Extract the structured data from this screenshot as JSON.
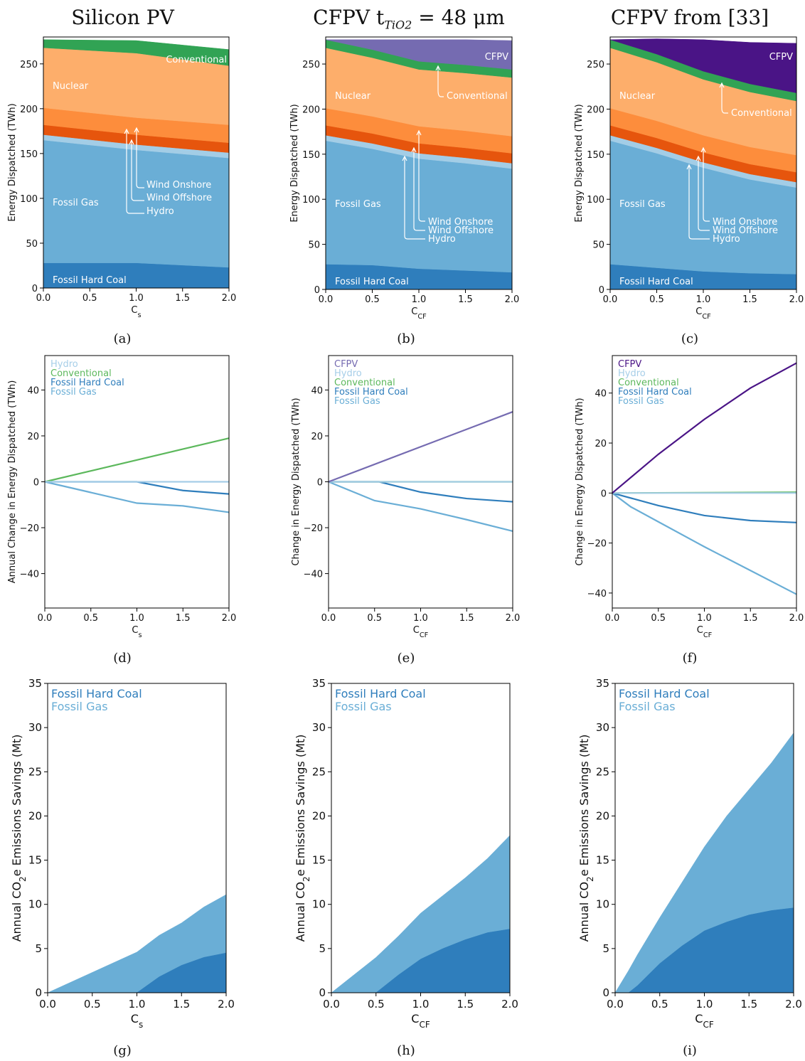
{
  "titles": [
    "Silicon PV",
    "CFPV t",
    "CFPV from [33]"
  ],
  "title_b_sub": "TiO2",
  "title_b_rest": " = 48 μm",
  "colors": {
    "coal": "#2f7ebc",
    "gas": "#6aaed6",
    "hydro": "#a3cde6",
    "wind_off": "#e6550d",
    "wind_on": "#fd8d3c",
    "nuclear": "#fdae6b",
    "conventional": "#31a354",
    "cfpv_b": "#756bb1",
    "cfpv_c": "#4a1486",
    "gas_line": "#6aaed6",
    "coal_line": "#2f7ebc",
    "hydro_line": "#a6cee8",
    "conv_line": "#5cb85c"
  },
  "chart_data": [
    {
      "panel": "a",
      "caption": "(a)",
      "type": "area",
      "xlabel": "Cs",
      "ylabel": "Energy Dispatched (TWh)",
      "xlim": [
        0,
        2
      ],
      "ylim": [
        0,
        280
      ],
      "xticks": [
        "0.0",
        "0.5",
        "1.0",
        "1.5",
        "2.0"
      ],
      "yticks": [
        "0",
        "50",
        "100",
        "150",
        "200",
        "250"
      ],
      "x": [
        0,
        1,
        2
      ],
      "series": [
        {
          "name": "Fossil Hard Coal",
          "values": [
            28,
            28,
            23
          ]
        },
        {
          "name": "Fossil Gas",
          "values": [
            137,
            126,
            122
          ]
        },
        {
          "name": "Hydro",
          "values": [
            6,
            6,
            6
          ]
        },
        {
          "name": "Wind Offshore",
          "values": [
            11,
            11,
            11
          ]
        },
        {
          "name": "Wind Onshore",
          "values": [
            19,
            19,
            20
          ]
        },
        {
          "name": "Nuclear",
          "values": [
            67,
            72,
            66
          ]
        },
        {
          "name": "Conventional",
          "values": [
            9,
            14,
            18
          ]
        }
      ],
      "labels": [
        "Fossil Hard Coal",
        "Fossil Gas",
        "Nuclear",
        "Conventional",
        "Wind Onshore",
        "Wind Offshore",
        "Hydro"
      ]
    },
    {
      "panel": "b",
      "caption": "(b)",
      "type": "area",
      "xlabel": "CCF",
      "ylabel": "Energy Dispatched (TWh)",
      "xlim": [
        0,
        2
      ],
      "ylim": [
        0,
        280
      ],
      "xticks": [
        "0.0",
        "0.5",
        "1.0",
        "1.5",
        "2.0"
      ],
      "yticks": [
        "0",
        "50",
        "100",
        "150",
        "200",
        "250"
      ],
      "x": [
        0,
        0.5,
        1,
        1.5,
        2
      ],
      "series": [
        {
          "name": "Fossil Hard Coal",
          "values": [
            28,
            27,
            23,
            21,
            19
          ]
        },
        {
          "name": "Fossil Gas",
          "values": [
            137,
            129,
            122,
            119,
            115
          ]
        },
        {
          "name": "Hydro",
          "values": [
            6,
            6,
            6,
            6,
            6
          ]
        },
        {
          "name": "Wind Offshore",
          "values": [
            11,
            11,
            11,
            11,
            11
          ]
        },
        {
          "name": "Wind Onshore",
          "values": [
            19,
            19,
            19,
            19,
            19
          ]
        },
        {
          "name": "Nuclear",
          "values": [
            67,
            65,
            63,
            64,
            65
          ]
        },
        {
          "name": "Conventional",
          "values": [
            9,
            9,
            9,
            9,
            9
          ]
        },
        {
          "name": "CFPV",
          "values": [
            0,
            11,
            24,
            28,
            32
          ]
        }
      ],
      "labels": [
        "CFPV",
        "Nuclear",
        "Conventional",
        "Fossil Gas",
        "Wind Onshore",
        "Wind Offshore",
        "Hydro",
        "Fossil Hard Coal"
      ]
    },
    {
      "panel": "c",
      "caption": "(c)",
      "type": "area",
      "xlabel": "CCF",
      "ylabel": "Energy Dispatched (TWh)",
      "xlim": [
        0,
        2
      ],
      "ylim": [
        0,
        280
      ],
      "xticks": [
        "0.0",
        "0.5",
        "1.0",
        "1.5",
        "2.0"
      ],
      "yticks": [
        "0",
        "50",
        "100",
        "150",
        "200",
        "250"
      ],
      "x": [
        0,
        0.5,
        1,
        1.5,
        2
      ],
      "series": [
        {
          "name": "Fossil Hard Coal",
          "values": [
            28,
            24,
            20,
            18,
            17
          ]
        },
        {
          "name": "Fossil Gas",
          "values": [
            137,
            127,
            115,
            104,
            96
          ]
        },
        {
          "name": "Hydro",
          "values": [
            6,
            6,
            6,
            6,
            6
          ]
        },
        {
          "name": "Wind Offshore",
          "values": [
            11,
            11,
            11,
            11,
            11
          ]
        },
        {
          "name": "Wind Onshore",
          "values": [
            19,
            19,
            19,
            19,
            19
          ]
        },
        {
          "name": "Nuclear",
          "values": [
            67,
            65,
            62,
            61,
            60
          ]
        },
        {
          "name": "Conventional",
          "values": [
            9,
            9,
            9,
            9,
            9
          ]
        },
        {
          "name": "CFPV",
          "values": [
            0,
            17,
            35,
            46,
            55
          ]
        }
      ],
      "labels": [
        "CFPV",
        "Nuclear",
        "Conventional",
        "Fossil Gas",
        "Wind Onshore",
        "Wind Offshore",
        "Hydro",
        "Fossil Hard Coal"
      ]
    },
    {
      "panel": "d",
      "caption": "(d)",
      "type": "line",
      "xlabel": "Cs",
      "ylabel": "Annual Change in Energy Dispatched (TWh)",
      "xlim": [
        0,
        2
      ],
      "ylim": [
        -55,
        55
      ],
      "xticks": [
        "0.0",
        "0.5",
        "1.0",
        "1.5",
        "2.0"
      ],
      "yticks": [
        "-40",
        "-20",
        "0",
        "20",
        "40"
      ],
      "series": [
        {
          "name": "Hydro",
          "color": "hydro_line",
          "x": [
            0,
            2
          ],
          "values": [
            0,
            0
          ]
        },
        {
          "name": "Conventional",
          "color": "conv_line",
          "x": [
            0,
            2
          ],
          "values": [
            0,
            19
          ]
        },
        {
          "name": "Fossil Hard Coal",
          "color": "coal_line",
          "x": [
            0,
            1,
            1.5,
            2
          ],
          "values": [
            0,
            0,
            -3.8,
            -5.3
          ]
        },
        {
          "name": "Fossil Gas",
          "color": "gas_line",
          "x": [
            0,
            1,
            1.5,
            2
          ],
          "values": [
            0,
            -9.3,
            -10.5,
            -13.3
          ]
        }
      ]
    },
    {
      "panel": "e",
      "caption": "(e)",
      "type": "line",
      "xlabel": "CCF",
      "ylabel": "Change in Energy Dispatched (TWh)",
      "xlim": [
        0,
        2
      ],
      "ylim": [
        -55,
        55
      ],
      "xticks": [
        "0.0",
        "0.5",
        "1.0",
        "1.5",
        "2.0"
      ],
      "yticks": [
        "-40",
        "-20",
        "0",
        "20",
        "40"
      ],
      "series": [
        {
          "name": "CFPV",
          "color": "cfpv_b",
          "x": [
            0,
            2
          ],
          "values": [
            0,
            30.5
          ]
        },
        {
          "name": "Hydro",
          "color": "hydro_line",
          "x": [
            0,
            2
          ],
          "values": [
            0,
            0
          ]
        },
        {
          "name": "Conventional",
          "color": "conv_line",
          "x": [
            0,
            2
          ],
          "values": [
            0,
            0
          ]
        },
        {
          "name": "Fossil Hard Coal",
          "color": "coal_line",
          "x": [
            0,
            0.55,
            1,
            1.5,
            2
          ],
          "values": [
            0,
            0,
            -4.5,
            -7.3,
            -8.7
          ]
        },
        {
          "name": "Fossil Gas",
          "color": "gas_line",
          "x": [
            0,
            0.5,
            1,
            1.5,
            2
          ],
          "values": [
            0,
            -8.2,
            -11.8,
            -16.5,
            -21.5
          ]
        }
      ]
    },
    {
      "panel": "f",
      "caption": "(f)",
      "type": "line",
      "xlabel": "CCF",
      "ylabel": "Change in Energy Dispatched (TWh)",
      "xlim": [
        0,
        2
      ],
      "ylim": [
        -46,
        55
      ],
      "xticks": [
        "0.0",
        "0.5",
        "1.0",
        "1.5",
        "2.0"
      ],
      "yticks": [
        "-40",
        "-20",
        "0",
        "20",
        "40"
      ],
      "series": [
        {
          "name": "CFPV",
          "color": "cfpv_c",
          "x": [
            0,
            0.5,
            1,
            1.5,
            2
          ],
          "values": [
            0,
            15.5,
            29.5,
            42,
            52
          ]
        },
        {
          "name": "Hydro",
          "color": "hydro_line",
          "x": [
            0,
            2
          ],
          "values": [
            0,
            0
          ]
        },
        {
          "name": "Conventional",
          "color": "conv_line",
          "x": [
            0,
            2
          ],
          "values": [
            0,
            0.3
          ]
        },
        {
          "name": "Fossil Hard Coal",
          "color": "coal_line",
          "x": [
            0,
            0.5,
            1,
            1.5,
            2
          ],
          "values": [
            0,
            -5,
            -9,
            -11,
            -11.8
          ]
        },
        {
          "name": "Fossil Gas",
          "color": "gas_line",
          "x": [
            0,
            0.2,
            0.5,
            1,
            1.5,
            2
          ],
          "values": [
            0,
            -5.5,
            -11.5,
            -21.5,
            -31,
            -40.5
          ]
        }
      ]
    },
    {
      "panel": "g",
      "caption": "(g)",
      "type": "area",
      "xlabel": "Cs",
      "ylabel": "Annual CO2e Emissions Savings (Mt)",
      "xlim": [
        0,
        2
      ],
      "ylim": [
        0,
        35
      ],
      "xticks": [
        "0.0",
        "0.5",
        "1.0",
        "1.5",
        "2.0"
      ],
      "yticks": [
        "0",
        "5",
        "10",
        "15",
        "20",
        "25",
        "30",
        "35"
      ],
      "series": [
        {
          "name": "Fossil Hard Coal",
          "x": [
            0,
            1,
            1.25,
            1.5,
            1.75,
            2
          ],
          "values": [
            0,
            0,
            1.8,
            3.1,
            4.0,
            4.5
          ]
        },
        {
          "name": "Fossil Gas",
          "x": [
            0,
            1,
            1.5,
            2
          ],
          "values": [
            0,
            4.6,
            4.8,
            6.6
          ]
        }
      ]
    },
    {
      "panel": "h",
      "caption": "(h)",
      "type": "area",
      "xlabel": "CCF",
      "ylabel": "Annual CO2e Emissions Savings (Mt)",
      "xlim": [
        0,
        2
      ],
      "ylim": [
        0,
        35
      ],
      "xticks": [
        "0.0",
        "0.5",
        "1.0",
        "1.5",
        "2.0"
      ],
      "yticks": [
        "0",
        "5",
        "10",
        "15",
        "20",
        "25",
        "30",
        "35"
      ],
      "series": [
        {
          "name": "Fossil Hard Coal",
          "x": [
            0,
            0.5,
            0.75,
            1,
            1.25,
            1.5,
            1.75,
            2
          ],
          "values": [
            0,
            0,
            2.0,
            3.8,
            5.0,
            6.0,
            6.8,
            7.2
          ]
        },
        {
          "name": "Fossil Gas",
          "x": [
            0,
            0.5,
            0.75,
            1,
            1.25,
            1.5,
            1.75,
            2
          ],
          "values": [
            0,
            4.0,
            4.4,
            5.2,
            6.0,
            7.0,
            8.4,
            10.6
          ]
        }
      ]
    },
    {
      "panel": "i",
      "caption": "(i)",
      "type": "area",
      "xlabel": "CCF",
      "ylabel": "Annual CO2e Emissions Savings (Mt)",
      "xlim": [
        0,
        2
      ],
      "ylim": [
        0,
        35
      ],
      "xticks": [
        "0.0",
        "0.5",
        "1.0",
        "1.5",
        "2.0"
      ],
      "yticks": [
        "0",
        "5",
        "10",
        "15",
        "20",
        "25",
        "30",
        "35"
      ],
      "series": [
        {
          "name": "Fossil Hard Coal",
          "x": [
            0,
            0.15,
            0.25,
            0.5,
            0.75,
            1,
            1.25,
            1.5,
            1.75,
            2
          ],
          "values": [
            0,
            0,
            0.8,
            3.3,
            5.3,
            7.0,
            8.0,
            8.8,
            9.3,
            9.6
          ]
        },
        {
          "name": "Fossil Gas",
          "x": [
            0,
            0.15,
            0.25,
            0.5,
            0.75,
            1,
            1.25,
            1.5,
            1.75,
            2
          ],
          "values": [
            0,
            2.5,
            3.5,
            5.2,
            7.2,
            9.5,
            12.0,
            14.2,
            16.7,
            19.8
          ]
        }
      ]
    }
  ]
}
